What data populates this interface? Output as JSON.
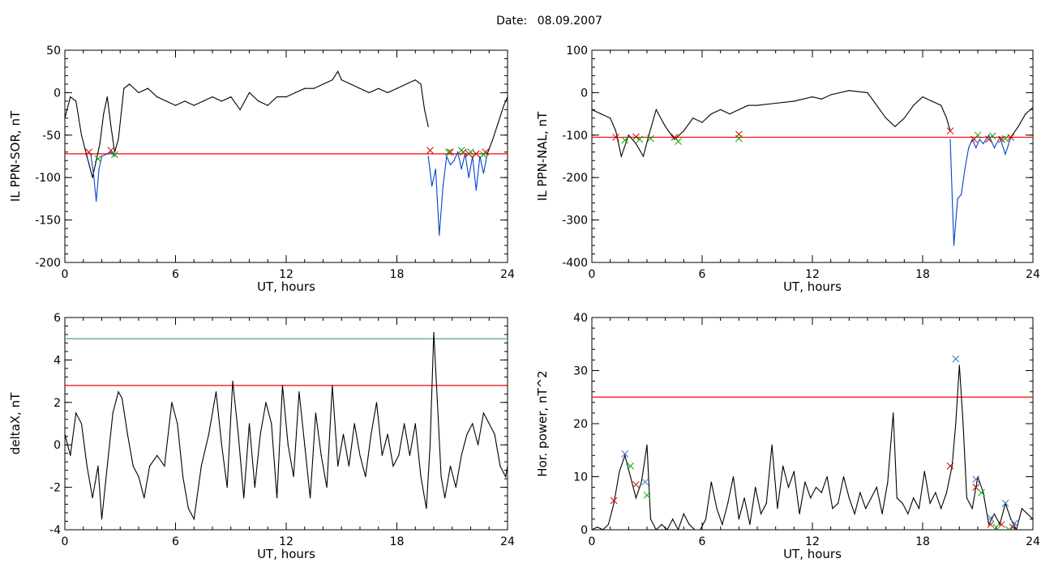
{
  "figure": {
    "date_label": "Date:",
    "date_value": "08.09.2007"
  },
  "chart_data": [
    {
      "id": "p1",
      "type": "line",
      "xlabel": "UT, hours",
      "ylabel": "IL PPN-SOR, nT",
      "xlim": [
        0,
        24
      ],
      "ylim": [
        -200,
        50
      ],
      "xticks": [
        0,
        6,
        12,
        18,
        24
      ],
      "yticks": [
        -200,
        -150,
        -100,
        -50,
        0,
        50
      ],
      "threshold": {
        "value": -72,
        "color": "#ff0000"
      },
      "series": [
        {
          "color": "#000000",
          "x": [
            0,
            0.3,
            0.6,
            0.9,
            1.2,
            1.5,
            1.7,
            1.9,
            2.1,
            2.3,
            2.5,
            2.7,
            2.9,
            3.2,
            3.5,
            4.0,
            4.5,
            5.0,
            5.5,
            6.0,
            6.5,
            7.0,
            7.5,
            8.0,
            8.5,
            9.0,
            9.5,
            10.0,
            10.5,
            11.0,
            11.5,
            12.0,
            12.5,
            13.0,
            13.5,
            14.0,
            14.5,
            14.8,
            15.0,
            15.5,
            16.0,
            16.5,
            17.0,
            17.5,
            18.0,
            18.5,
            19.0,
            19.3,
            19.5,
            19.7
          ],
          "y": [
            -30,
            -5,
            -10,
            -50,
            -75,
            -100,
            -80,
            -60,
            -25,
            -5,
            -40,
            -70,
            -55,
            5,
            10,
            0,
            5,
            -5,
            -10,
            -15,
            -10,
            -15,
            -10,
            -5,
            -10,
            -5,
            -20,
            0,
            -10,
            -15,
            -5,
            -5,
            0,
            5,
            5,
            10,
            15,
            25,
            15,
            10,
            5,
            0,
            5,
            0,
            5,
            10,
            15,
            10,
            -20,
            -40
          ]
        },
        {
          "color": "#0044cc",
          "x": [
            19.7,
            19.9,
            20.1,
            20.3,
            20.5,
            20.7,
            20.9,
            21.1,
            21.3,
            21.5,
            21.7,
            21.9,
            22.1,
            22.3,
            22.5,
            22.7,
            22.9
          ],
          "y": [
            -75,
            -110,
            -90,
            -168,
            -110,
            -75,
            -85,
            -80,
            -70,
            -90,
            -72,
            -100,
            -75,
            -115,
            -75,
            -95,
            -72
          ]
        },
        {
          "color": "#0044cc",
          "x": [
            1.4,
            1.55,
            1.7,
            1.85,
            2.0,
            2.3,
            2.5,
            2.7
          ],
          "y": [
            -72,
            -95,
            -128,
            -90,
            -75,
            -72,
            -70,
            -75
          ]
        },
        {
          "color": "#000000",
          "x": [
            22.9,
            23.2,
            23.5,
            23.8,
            24
          ],
          "y": [
            -72,
            -55,
            -35,
            -15,
            -5
          ]
        }
      ],
      "markers": [
        {
          "symbol": "x",
          "color": "#cc0000",
          "x": [
            1.3,
            2.5,
            19.8,
            20.9,
            21.6,
            21.9,
            22.3,
            22.8
          ],
          "y": [
            -70,
            -68,
            -68,
            -70,
            -70,
            -72,
            -72,
            -70
          ]
        },
        {
          "symbol": "x",
          "color": "#00aa00",
          "x": [
            1.8,
            2.7,
            20.8,
            21.5,
            22.0,
            22.7
          ],
          "y": [
            -78,
            -73,
            -70,
            -68,
            -70,
            -73
          ]
        }
      ]
    },
    {
      "id": "p2",
      "type": "line",
      "xlabel": "UT, hours",
      "ylabel": "IL PPN-NAL, nT",
      "xlim": [
        0,
        24
      ],
      "ylim": [
        -400,
        100
      ],
      "xticks": [
        0,
        6,
        12,
        18,
        24
      ],
      "yticks": [
        -400,
        -300,
        -200,
        -100,
        0,
        100
      ],
      "threshold": {
        "value": -105,
        "color": "#ff0000"
      },
      "series": [
        {
          "color": "#000000",
          "x": [
            0,
            0.5,
            1.0,
            1.3,
            1.6,
            2.0,
            2.4,
            2.8,
            3.1,
            3.5,
            4.0,
            4.5,
            5.0,
            5.5,
            6.0,
            6.5,
            7.0,
            7.5,
            8.0,
            8.5,
            9.0,
            10.0,
            11.0,
            12.0,
            12.5,
            13.0,
            14.0,
            15.0,
            16.0,
            16.5,
            17.0,
            17.5,
            18.0,
            18.5,
            19.0,
            19.3,
            19.5
          ],
          "y": [
            -40,
            -50,
            -60,
            -90,
            -150,
            -100,
            -120,
            -150,
            -100,
            -40,
            -80,
            -110,
            -90,
            -60,
            -70,
            -50,
            -40,
            -50,
            -40,
            -30,
            -30,
            -25,
            -20,
            -10,
            -15,
            -5,
            5,
            0,
            -60,
            -80,
            -60,
            -30,
            -10,
            -20,
            -30,
            -60,
            -90
          ]
        },
        {
          "color": "#0044cc",
          "x": [
            19.5,
            19.7,
            19.9,
            20.1,
            20.3,
            20.5,
            20.7,
            20.9,
            21.1,
            21.3,
            21.6,
            21.9,
            22.2,
            22.5,
            22.8
          ],
          "y": [
            -110,
            -360,
            -250,
            -240,
            -180,
            -130,
            -110,
            -130,
            -110,
            -120,
            -100,
            -130,
            -105,
            -145,
            -105
          ]
        },
        {
          "color": "#000000",
          "x": [
            22.8,
            23.2,
            23.6,
            24
          ],
          "y": [
            -105,
            -80,
            -50,
            -35
          ]
        }
      ],
      "markers": [
        {
          "symbol": "x",
          "color": "#cc0000",
          "x": [
            1.3,
            2.4,
            4.5,
            8.0,
            19.5,
            20.8,
            21.6,
            22.3,
            22.8
          ],
          "y": [
            -105,
            -104,
            -105,
            -98,
            -90,
            -110,
            -110,
            -110,
            -105
          ]
        },
        {
          "symbol": "x",
          "color": "#00aa00",
          "x": [
            1.8,
            2.6,
            3.2,
            4.7,
            8.0,
            21.0,
            21.8,
            22.5
          ],
          "y": [
            -112,
            -110,
            -108,
            -115,
            -108,
            -100,
            -102,
            -108
          ]
        }
      ]
    },
    {
      "id": "p3",
      "type": "line",
      "xlabel": "UT, hours",
      "ylabel": "deltaX, nT",
      "xlim": [
        0,
        24
      ],
      "ylim": [
        -4,
        6
      ],
      "xticks": [
        0,
        6,
        12,
        18,
        24
      ],
      "yticks": [
        -4,
        -2,
        0,
        2,
        4,
        6
      ],
      "thresholds": [
        {
          "value": 2.8,
          "color": "#ff0000"
        },
        {
          "value": 5.0,
          "color": "#339999"
        }
      ],
      "series": [
        {
          "color": "#000000",
          "x": [
            0,
            0.3,
            0.6,
            0.9,
            1.2,
            1.5,
            1.8,
            2.0,
            2.3,
            2.6,
            2.9,
            3.1,
            3.4,
            3.7,
            4.0,
            4.3,
            4.6,
            5.0,
            5.4,
            5.8,
            6.1,
            6.4,
            6.7,
            7.0,
            7.4,
            7.8,
            8.2,
            8.5,
            8.8,
            9.1,
            9.4,
            9.7,
            10.0,
            10.3,
            10.6,
            10.9,
            11.2,
            11.5,
            11.8,
            12.1,
            12.4,
            12.7,
            13.0,
            13.3,
            13.6,
            13.9,
            14.2,
            14.5,
            14.8,
            15.1,
            15.4,
            15.7,
            16.0,
            16.3,
            16.6,
            16.9,
            17.2,
            17.5,
            17.8,
            18.1,
            18.4,
            18.7,
            19.0,
            19.3,
            19.6,
            19.8,
            20.0,
            20.2,
            20.4,
            20.6,
            20.9,
            21.2,
            21.5,
            21.8,
            22.1,
            22.4,
            22.7,
            23.0,
            23.3,
            23.6,
            23.9,
            24
          ],
          "y": [
            0.5,
            -0.5,
            1.5,
            1.0,
            -1.0,
            -2.5,
            -1.0,
            -3.5,
            -1.0,
            1.5,
            2.5,
            2.2,
            0.5,
            -1.0,
            -1.5,
            -2.5,
            -1.0,
            -0.5,
            -1.0,
            2.0,
            1.0,
            -1.5,
            -3.0,
            -3.5,
            -1.0,
            0.5,
            2.5,
            0.0,
            -2.0,
            3.0,
            0.5,
            -2.5,
            1.0,
            -2.0,
            0.5,
            2.0,
            1.0,
            -2.5,
            2.8,
            0.0,
            -1.5,
            2.5,
            0.0,
            -2.5,
            1.5,
            -0.5,
            -2.0,
            2.8,
            -1.0,
            0.5,
            -1.0,
            1.0,
            -0.5,
            -1.5,
            0.5,
            2.0,
            -0.5,
            0.5,
            -1.0,
            -0.5,
            1.0,
            -0.5,
            1.0,
            -1.5,
            -3.0,
            0.0,
            5.3,
            2.0,
            -1.5,
            -2.5,
            -1.0,
            -2.0,
            -0.5,
            0.5,
            1.0,
            0.0,
            1.5,
            1.0,
            0.5,
            -1.0,
            -1.5,
            -1.0
          ]
        }
      ]
    },
    {
      "id": "p4",
      "type": "line",
      "xlabel": "UT, hours",
      "ylabel": "Hor. power, nT^2",
      "xlim": [
        0,
        24
      ],
      "ylim": [
        0,
        40
      ],
      "xticks": [
        0,
        6,
        12,
        18,
        24
      ],
      "yticks": [
        0,
        10,
        20,
        30,
        40
      ],
      "threshold": {
        "value": 25,
        "color": "#ff0000"
      },
      "series": [
        {
          "color": "#000000",
          "x": [
            0,
            0.3,
            0.6,
            0.9,
            1.2,
            1.5,
            1.8,
            2.1,
            2.4,
            2.7,
            3.0,
            3.2,
            3.5,
            3.8,
            4.1,
            4.4,
            4.7,
            5.0,
            5.3,
            5.6,
            5.9,
            6.2,
            6.5,
            6.8,
            7.1,
            7.4,
            7.7,
            8.0,
            8.3,
            8.6,
            8.9,
            9.2,
            9.5,
            9.8,
            10.1,
            10.4,
            10.7,
            11.0,
            11.3,
            11.6,
            11.9,
            12.2,
            12.5,
            12.8,
            13.1,
            13.4,
            13.7,
            14.0,
            14.3,
            14.6,
            14.9,
            15.2,
            15.5,
            15.8,
            16.1,
            16.4,
            16.6,
            16.9,
            17.2,
            17.5,
            17.8,
            18.1,
            18.4,
            18.7,
            19.0,
            19.3,
            19.6,
            19.8,
            20.0,
            20.2,
            20.4,
            20.7,
            21.0,
            21.3,
            21.6,
            21.9,
            22.2,
            22.5,
            22.8,
            23.1,
            23.4,
            23.7,
            24
          ],
          "y": [
            0,
            0.5,
            0,
            1,
            5,
            11,
            14,
            10,
            6,
            9,
            16,
            2,
            0,
            1,
            0,
            2,
            0,
            3,
            1,
            0,
            0,
            2,
            9,
            4,
            1,
            5,
            10,
            2,
            6,
            1,
            8,
            3,
            5,
            16,
            4,
            12,
            8,
            11,
            3,
            9,
            6,
            8,
            7,
            10,
            4,
            5,
            10,
            6,
            3,
            7,
            4,
            6,
            8,
            3,
            9,
            22,
            6,
            5,
            3,
            6,
            4,
            11,
            5,
            7,
            4,
            7,
            12,
            20,
            31,
            20,
            6,
            4,
            10,
            7,
            1,
            3,
            1,
            5,
            2,
            0,
            4,
            3,
            2
          ]
        }
      ],
      "markers": [
        {
          "symbol": "x",
          "color": "#cc0000",
          "x": [
            1.2,
            2.4,
            19.5,
            20.9,
            21.7,
            22.3,
            22.9
          ],
          "y": [
            5.5,
            8.5,
            12,
            8,
            1,
            1,
            0.5
          ]
        },
        {
          "symbol": "x",
          "color": "#3377cc",
          "x": [
            1.8,
            2.9,
            19.8,
            20.9,
            21.7,
            22.5,
            23.0
          ],
          "y": [
            14.3,
            9,
            32.2,
            9.5,
            2.2,
            5,
            1.2
          ]
        },
        {
          "symbol": "x",
          "color": "#00aa00",
          "x": [
            2.1,
            3.0,
            21.2,
            22.0,
            22.7
          ],
          "y": [
            12,
            6.5,
            7,
            0.5,
            0
          ]
        }
      ]
    }
  ]
}
